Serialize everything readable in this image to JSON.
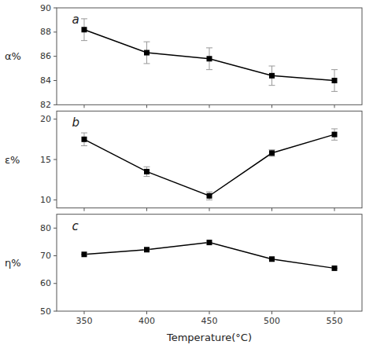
{
  "chart_data": [
    {
      "type": "line",
      "x": [
        350,
        400,
        450,
        500,
        550
      ],
      "xlim": [
        328,
        572
      ],
      "xticks": [
        350,
        400,
        450,
        500,
        550
      ],
      "ylim": [
        82,
        90
      ],
      "yticks": [
        82,
        84,
        86,
        88,
        90
      ],
      "ylabel": "α%",
      "annotation": "a",
      "tick_labels": "y",
      "grid": false,
      "marker": "square",
      "series": [
        {
          "color": "black",
          "values": [
            88.2,
            86.3,
            85.8,
            84.4,
            84.0
          ],
          "errors": [
            0.9,
            0.9,
            0.9,
            0.8,
            0.9
          ]
        }
      ]
    },
    {
      "type": "line",
      "x": [
        350,
        400,
        450,
        500,
        550
      ],
      "xlim": [
        328,
        572
      ],
      "xticks": [
        350,
        400,
        450,
        500,
        550
      ],
      "ylim": [
        9,
        21
      ],
      "yticks": [
        10,
        15,
        20
      ],
      "ylabel": "ε%",
      "annotation": "b",
      "tick_labels": "y",
      "grid": false,
      "marker": "square",
      "series": [
        {
          "color": "black",
          "values": [
            17.5,
            13.5,
            10.5,
            15.8,
            18.1
          ],
          "errors": [
            0.8,
            0.6,
            0.5,
            0.4,
            0.7
          ]
        }
      ]
    },
    {
      "type": "line",
      "x": [
        350,
        400,
        450,
        500,
        550
      ],
      "xlim": [
        328,
        572
      ],
      "xticks": [
        350,
        400,
        450,
        500,
        550
      ],
      "ylim": [
        50,
        85
      ],
      "yticks": [
        50,
        60,
        70,
        80
      ],
      "ylabel": "η%",
      "annotation": "c",
      "xlabel": "Temperature(°C)",
      "grid": false,
      "marker": "square",
      "series": [
        {
          "color": "black",
          "values": [
            70.5,
            72.2,
            74.8,
            68.8,
            65.5
          ],
          "errors": [
            0.0,
            0.0,
            0.0,
            0.0,
            0.0
          ]
        }
      ]
    }
  ]
}
